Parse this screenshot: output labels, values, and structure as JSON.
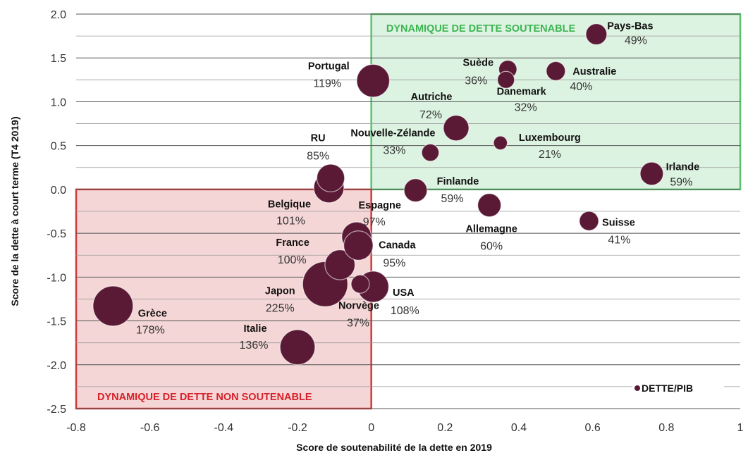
{
  "chart_data": {
    "type": "scatter",
    "xlabel": "Score de soutenabilité de la dette en 2019",
    "ylabel": "Score de la dette à court terme (T4 2019)",
    "xlim": [
      -0.8,
      1.0
    ],
    "ylim": [
      -2.5,
      2.0
    ],
    "x_ticks": [
      "-0.8",
      "-0.6",
      "-0.4",
      "-0.2",
      "0",
      "0.2",
      "0.4",
      "0.6",
      "0.8",
      "1"
    ],
    "y_ticks": [
      "2.0",
      "1.5",
      "1.0",
      "0.5",
      "0.0",
      "-0.5",
      "-1.0",
      "-1.5",
      "-2.0",
      "-2.5"
    ],
    "grid": "horizontal",
    "legend": {
      "label": "DETTE/PIB",
      "placement": "bottom-right"
    },
    "bubble_color": "#5a1a36",
    "zones": [
      {
        "label": "DYNAMIQUE DE DETTE SOUTENABLE",
        "x": [
          0.0,
          1.0
        ],
        "y": [
          0.0,
          2.0
        ],
        "fill": "#d7f1dc",
        "stroke": "#5dc06f",
        "text_color": "#3db552"
      },
      {
        "label": "DYNAMIQUE DE DETTE NON SOUTENABLE",
        "x": [
          -0.8,
          0.0
        ],
        "y": [
          -2.5,
          0.0
        ],
        "fill": "#f3cfcf",
        "stroke": "#d03b3b",
        "text_color": "#d6212a"
      }
    ],
    "points": [
      {
        "name": "Pays-Bas",
        "value": "49%",
        "x": 0.61,
        "y": 1.77,
        "size": 49
      },
      {
        "name": "Suède",
        "value": "36%",
        "x": 0.37,
        "y": 1.37,
        "size": 36
      },
      {
        "name": "Australie",
        "value": "40%",
        "x": 0.5,
        "y": 1.35,
        "size": 40
      },
      {
        "name": "Danemark",
        "value": "32%",
        "x": 0.365,
        "y": 1.25,
        "size": 32
      },
      {
        "name": "Portugal",
        "value": "119%",
        "x": 0.005,
        "y": 1.24,
        "size": 119
      },
      {
        "name": "Autriche",
        "value": "72%",
        "x": 0.23,
        "y": 0.7,
        "size": 72
      },
      {
        "name": "Luxembourg",
        "value": "21%",
        "x": 0.35,
        "y": 0.53,
        "size": 21
      },
      {
        "name": "Nouvelle-Zélande",
        "value": "33%",
        "x": 0.16,
        "y": 0.42,
        "size": 33
      },
      {
        "name": "RU",
        "value": "85%",
        "x": -0.11,
        "y": 0.13,
        "size": 85
      },
      {
        "name": "Irlande",
        "value": "59%",
        "x": 0.76,
        "y": 0.18,
        "size": 59
      },
      {
        "name": "Finlande",
        "value": "59%",
        "x": 0.12,
        "y": -0.01,
        "size": 59
      },
      {
        "name": "Belgique",
        "value": "101%",
        "x": -0.115,
        "y": 0.02,
        "size": 101
      },
      {
        "name": "Espagne",
        "value": "97%",
        "x": -0.04,
        "y": -0.54,
        "size": 97
      },
      {
        "name": "Allemagne",
        "value": "60%",
        "x": 0.32,
        "y": -0.18,
        "size": 60
      },
      {
        "name": "Suisse",
        "value": "41%",
        "x": 0.59,
        "y": -0.36,
        "size": 41
      },
      {
        "name": "Canada",
        "value": "95%",
        "x": -0.035,
        "y": -0.64,
        "size": 95
      },
      {
        "name": "France",
        "value": "100%",
        "x": -0.085,
        "y": -0.86,
        "size": 100
      },
      {
        "name": "Japon",
        "value": "225%",
        "x": -0.125,
        "y": -1.08,
        "size": 225
      },
      {
        "name": "Norvège",
        "value": "37%",
        "x": -0.03,
        "y": -1.08,
        "size": 37
      },
      {
        "name": "USA",
        "value": "108%",
        "x": 0.005,
        "y": -1.11,
        "size": 108
      },
      {
        "name": "Grèce",
        "value": "178%",
        "x": -0.7,
        "y": -1.33,
        "size": 178
      },
      {
        "name": "Italie",
        "value": "136%",
        "x": -0.2,
        "y": -1.8,
        "size": 136
      }
    ]
  }
}
